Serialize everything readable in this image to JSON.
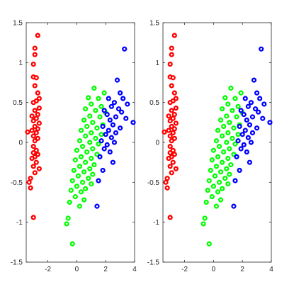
{
  "chart_data": [
    {
      "type": "scatter",
      "title": "",
      "xlabel": "",
      "ylabel": "",
      "xlim": [
        -3.5,
        4
      ],
      "ylim": [
        -1.5,
        1.5
      ],
      "xticks": [
        -2,
        0,
        2,
        4
      ],
      "yticks": [
        -1.5,
        -1,
        -0.5,
        0,
        0.5,
        1,
        1.5
      ],
      "grid": false,
      "legend": "none",
      "series": [
        {
          "color": "#ff0000",
          "points": [
            [
              -2.7,
              1.34
            ],
            [
              -2.9,
              1.18
            ],
            [
              -2.9,
              1.1
            ],
            [
              -3.0,
              0.98
            ],
            [
              -3.0,
              0.82
            ],
            [
              -2.8,
              0.81
            ],
            [
              -2.9,
              0.71
            ],
            [
              -2.7,
              0.62
            ],
            [
              -2.6,
              0.55
            ],
            [
              -2.8,
              0.52
            ],
            [
              -3.0,
              0.5
            ],
            [
              -2.6,
              0.43
            ],
            [
              -2.9,
              0.4
            ],
            [
              -2.7,
              0.35
            ],
            [
              -3.1,
              0.33
            ],
            [
              -2.8,
              0.3
            ],
            [
              -3.0,
              0.27
            ],
            [
              -2.6,
              0.24
            ],
            [
              -2.9,
              0.2
            ],
            [
              -2.7,
              0.17
            ],
            [
              -3.1,
              0.15
            ],
            [
              -3.4,
              0.13
            ],
            [
              -2.8,
              0.12
            ],
            [
              -3.0,
              0.08
            ],
            [
              -2.7,
              0.05
            ],
            [
              -2.9,
              0.02
            ],
            [
              -3.0,
              -0.05
            ],
            [
              -2.8,
              -0.1
            ],
            [
              -3.0,
              -0.13
            ],
            [
              -2.7,
              -0.15
            ],
            [
              -2.9,
              -0.18
            ],
            [
              -3.1,
              -0.2
            ],
            [
              -2.8,
              -0.25
            ],
            [
              -3.0,
              -0.3
            ],
            [
              -2.6,
              -0.33
            ],
            [
              -2.9,
              -0.38
            ],
            [
              -3.2,
              -0.45
            ],
            [
              -3.3,
              -0.5
            ],
            [
              -3.2,
              -0.57
            ],
            [
              -3.0,
              -0.94
            ]
          ]
        },
        {
          "color": "#00ff00",
          "points": [
            [
              1.2,
              0.68
            ],
            [
              1.9,
              0.62
            ],
            [
              0.8,
              0.56
            ],
            [
              1.5,
              0.55
            ],
            [
              1.0,
              0.48
            ],
            [
              1.7,
              0.45
            ],
            [
              0.6,
              0.42
            ],
            [
              1.3,
              0.4
            ],
            [
              2.0,
              0.37
            ],
            [
              0.9,
              0.33
            ],
            [
              1.6,
              0.32
            ],
            [
              0.5,
              0.28
            ],
            [
              1.1,
              0.25
            ],
            [
              1.8,
              0.22
            ],
            [
              0.7,
              0.2
            ],
            [
              1.4,
              0.18
            ],
            [
              0.3,
              0.15
            ],
            [
              1.0,
              0.12
            ],
            [
              1.7,
              0.1
            ],
            [
              0.6,
              0.08
            ],
            [
              1.3,
              0.05
            ],
            [
              0.2,
              0.02
            ],
            [
              0.9,
              0.0
            ],
            [
              1.5,
              -0.02
            ],
            [
              0.4,
              -0.05
            ],
            [
              1.1,
              -0.08
            ],
            [
              0.0,
              -0.1
            ],
            [
              0.7,
              -0.12
            ],
            [
              1.4,
              -0.15
            ],
            [
              0.3,
              -0.18
            ],
            [
              1.0,
              -0.2
            ],
            [
              -0.1,
              -0.22
            ],
            [
              0.6,
              -0.25
            ],
            [
              1.2,
              -0.28
            ],
            [
              0.2,
              -0.3
            ],
            [
              0.9,
              -0.33
            ],
            [
              -0.2,
              -0.35
            ],
            [
              0.5,
              -0.37
            ],
            [
              1.1,
              -0.4
            ],
            [
              0.1,
              -0.42
            ],
            [
              0.8,
              -0.45
            ],
            [
              -0.3,
              -0.48
            ],
            [
              0.4,
              -0.5
            ],
            [
              1.0,
              -0.52
            ],
            [
              0.0,
              -0.55
            ],
            [
              0.6,
              -0.58
            ],
            [
              -0.4,
              -0.6
            ],
            [
              0.3,
              -0.62
            ],
            [
              -0.1,
              -0.68
            ],
            [
              0.5,
              -0.72
            ],
            [
              -0.5,
              -0.75
            ],
            [
              0.2,
              -0.8
            ],
            [
              -0.6,
              -0.95
            ],
            [
              -0.7,
              -1.02
            ],
            [
              -0.3,
              -1.27
            ]
          ]
        },
        {
          "color": "#0000ff",
          "points": [
            [
              3.3,
              1.17
            ],
            [
              2.8,
              0.78
            ],
            [
              3.0,
              0.62
            ],
            [
              2.2,
              0.55
            ],
            [
              3.2,
              0.55
            ],
            [
              2.6,
              0.5
            ],
            [
              3.5,
              0.48
            ],
            [
              2.4,
              0.45
            ],
            [
              2.9,
              0.42
            ],
            [
              1.9,
              0.4
            ],
            [
              3.1,
              0.38
            ],
            [
              2.1,
              0.35
            ],
            [
              2.7,
              0.32
            ],
            [
              3.4,
              0.3
            ],
            [
              2.3,
              0.28
            ],
            [
              3.9,
              0.25
            ],
            [
              2.5,
              0.22
            ],
            [
              1.8,
              0.2
            ],
            [
              3.0,
              0.18
            ],
            [
              2.2,
              0.15
            ],
            [
              2.7,
              0.12
            ],
            [
              2.0,
              0.1
            ],
            [
              2.4,
              0.06
            ],
            [
              1.7,
              0.02
            ],
            [
              2.6,
              0.0
            ],
            [
              2.1,
              -0.03
            ],
            [
              1.9,
              -0.08
            ],
            [
              2.3,
              -0.12
            ],
            [
              1.6,
              -0.18
            ],
            [
              2.5,
              -0.25
            ],
            [
              1.8,
              -0.35
            ],
            [
              1.5,
              -0.48
            ],
            [
              1.4,
              -0.8
            ]
          ]
        }
      ]
    },
    {
      "type": "scatter",
      "title": "",
      "xlabel": "",
      "ylabel": "",
      "xlim": [
        -3.5,
        4
      ],
      "ylim": [
        -1.5,
        1.5
      ],
      "xticks": [
        -2,
        0,
        2,
        4
      ],
      "yticks": [
        -1.5,
        -1,
        -0.5,
        0,
        0.5,
        1,
        1.5
      ],
      "grid": false,
      "legend": "none",
      "series": [
        {
          "color": "#ff0000",
          "points": [
            [
              -2.7,
              1.34
            ],
            [
              -2.9,
              1.18
            ],
            [
              -2.9,
              1.1
            ],
            [
              -3.0,
              0.98
            ],
            [
              -3.0,
              0.82
            ],
            [
              -2.8,
              0.81
            ],
            [
              -2.9,
              0.71
            ],
            [
              -2.7,
              0.62
            ],
            [
              -2.6,
              0.55
            ],
            [
              -2.8,
              0.52
            ],
            [
              -3.0,
              0.5
            ],
            [
              -2.6,
              0.43
            ],
            [
              -2.9,
              0.4
            ],
            [
              -2.7,
              0.35
            ],
            [
              -3.1,
              0.33
            ],
            [
              -2.8,
              0.3
            ],
            [
              -3.0,
              0.27
            ],
            [
              -2.6,
              0.24
            ],
            [
              -2.9,
              0.2
            ],
            [
              -2.7,
              0.17
            ],
            [
              -3.1,
              0.15
            ],
            [
              -3.4,
              0.13
            ],
            [
              -2.8,
              0.12
            ],
            [
              -3.0,
              0.08
            ],
            [
              -2.7,
              0.05
            ],
            [
              -2.9,
              0.02
            ],
            [
              -3.0,
              -0.05
            ],
            [
              -2.8,
              -0.1
            ],
            [
              -3.0,
              -0.13
            ],
            [
              -2.7,
              -0.15
            ],
            [
              -2.9,
              -0.18
            ],
            [
              -3.1,
              -0.2
            ],
            [
              -2.8,
              -0.25
            ],
            [
              -3.0,
              -0.3
            ],
            [
              -2.6,
              -0.33
            ],
            [
              -2.9,
              -0.38
            ],
            [
              -3.2,
              -0.45
            ],
            [
              -3.3,
              -0.5
            ],
            [
              -3.2,
              -0.57
            ],
            [
              -3.0,
              -0.94
            ]
          ]
        },
        {
          "color": "#00ff00",
          "points": [
            [
              1.2,
              0.68
            ],
            [
              1.9,
              0.62
            ],
            [
              0.8,
              0.56
            ],
            [
              1.5,
              0.55
            ],
            [
              1.0,
              0.48
            ],
            [
              1.7,
              0.45
            ],
            [
              0.6,
              0.42
            ],
            [
              1.3,
              0.4
            ],
            [
              2.0,
              0.37
            ],
            [
              0.9,
              0.33
            ],
            [
              1.6,
              0.32
            ],
            [
              0.5,
              0.28
            ],
            [
              1.1,
              0.25
            ],
            [
              1.8,
              0.22
            ],
            [
              0.7,
              0.2
            ],
            [
              1.4,
              0.18
            ],
            [
              0.3,
              0.15
            ],
            [
              1.0,
              0.12
            ],
            [
              1.7,
              0.1
            ],
            [
              0.6,
              0.08
            ],
            [
              1.3,
              0.05
            ],
            [
              0.2,
              0.02
            ],
            [
              0.9,
              0.0
            ],
            [
              1.5,
              -0.02
            ],
            [
              0.4,
              -0.05
            ],
            [
              1.1,
              -0.08
            ],
            [
              0.0,
              -0.1
            ],
            [
              0.7,
              -0.12
            ],
            [
              1.4,
              -0.15
            ],
            [
              0.3,
              -0.18
            ],
            [
              1.0,
              -0.2
            ],
            [
              -0.1,
              -0.22
            ],
            [
              0.6,
              -0.25
            ],
            [
              1.2,
              -0.28
            ],
            [
              0.2,
              -0.3
            ],
            [
              0.9,
              -0.33
            ],
            [
              -0.2,
              -0.35
            ],
            [
              0.5,
              -0.37
            ],
            [
              1.1,
              -0.4
            ],
            [
              0.1,
              -0.42
            ],
            [
              0.8,
              -0.45
            ],
            [
              -0.3,
              -0.48
            ],
            [
              0.4,
              -0.5
            ],
            [
              1.0,
              -0.52
            ],
            [
              0.0,
              -0.55
            ],
            [
              0.6,
              -0.58
            ],
            [
              -0.4,
              -0.6
            ],
            [
              0.3,
              -0.62
            ],
            [
              -0.1,
              -0.68
            ],
            [
              0.5,
              -0.72
            ],
            [
              -0.5,
              -0.75
            ],
            [
              0.2,
              -0.8
            ],
            [
              -0.6,
              -0.95
            ],
            [
              -0.7,
              -1.02
            ],
            [
              -0.3,
              -1.27
            ]
          ]
        },
        {
          "color": "#0000ff",
          "points": [
            [
              3.3,
              1.17
            ],
            [
              2.8,
              0.78
            ],
            [
              3.0,
              0.62
            ],
            [
              2.2,
              0.55
            ],
            [
              3.2,
              0.55
            ],
            [
              2.6,
              0.5
            ],
            [
              3.5,
              0.48
            ],
            [
              2.4,
              0.45
            ],
            [
              2.9,
              0.42
            ],
            [
              1.9,
              0.4
            ],
            [
              3.1,
              0.38
            ],
            [
              2.1,
              0.35
            ],
            [
              2.7,
              0.32
            ],
            [
              3.4,
              0.3
            ],
            [
              2.3,
              0.28
            ],
            [
              3.9,
              0.25
            ],
            [
              2.5,
              0.22
            ],
            [
              1.8,
              0.2
            ],
            [
              3.0,
              0.18
            ],
            [
              2.2,
              0.15
            ],
            [
              2.7,
              0.12
            ],
            [
              2.0,
              0.1
            ],
            [
              2.4,
              0.06
            ],
            [
              1.7,
              0.02
            ],
            [
              2.6,
              0.0
            ],
            [
              2.1,
              -0.03
            ],
            [
              1.9,
              -0.08
            ],
            [
              2.3,
              -0.12
            ],
            [
              1.6,
              -0.18
            ],
            [
              2.5,
              -0.25
            ],
            [
              1.8,
              -0.35
            ],
            [
              1.5,
              -0.48
            ],
            [
              1.4,
              -0.8
            ]
          ]
        }
      ]
    }
  ]
}
